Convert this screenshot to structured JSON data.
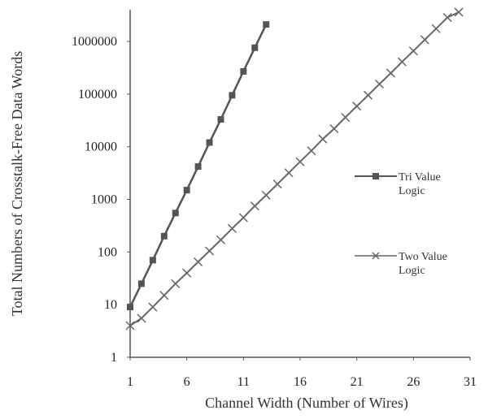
{
  "chart_data": {
    "type": "line",
    "xlabel": "Channel Width (Number of Wires)",
    "ylabel": "Total Numbers of Crosstalk-Free Data Words",
    "xlim": [
      1,
      31
    ],
    "ylim": [
      1,
      4000000
    ],
    "yscale": "log",
    "grid": false,
    "legend_placement": "right",
    "x_ticks": [
      1,
      6,
      11,
      16,
      21,
      26,
      31
    ],
    "x_tick_labels": [
      "1",
      "6",
      "11",
      "16",
      "21",
      "26",
      "31"
    ],
    "y_ticks": [
      1,
      10,
      100,
      1000,
      10000,
      100000,
      1000000
    ],
    "y_tick_labels": [
      "1",
      "10",
      "100",
      "1000",
      "10000",
      "100000",
      "1000000"
    ],
    "series": [
      {
        "name": "Tri Value Logic",
        "marker": "square",
        "color": "#555555",
        "x": [
          1,
          2,
          3,
          4,
          5,
          6,
          7,
          8,
          9,
          10,
          11,
          12,
          13
        ],
        "y": [
          9,
          25,
          70,
          200,
          550,
          1500,
          4200,
          12000,
          33000,
          95000,
          270000,
          760000,
          2100000
        ]
      },
      {
        "name": "Two Value Logic",
        "marker": "x",
        "color": "#666666",
        "x": [
          1,
          2,
          3,
          4,
          5,
          6,
          7,
          8,
          9,
          10,
          11,
          12,
          13,
          14,
          15,
          16,
          17,
          18,
          19,
          20,
          21,
          22,
          23,
          24,
          25,
          26,
          27,
          28,
          29,
          30
        ],
        "y": [
          4,
          5.5,
          9,
          15,
          25,
          40,
          65,
          105,
          170,
          280,
          450,
          750,
          1200,
          1950,
          3200,
          5200,
          8400,
          14000,
          22000,
          36000,
          59000,
          95000,
          155000,
          250000,
          410000,
          660000,
          1080000,
          1750000,
          2850000,
          3600000
        ]
      }
    ]
  }
}
